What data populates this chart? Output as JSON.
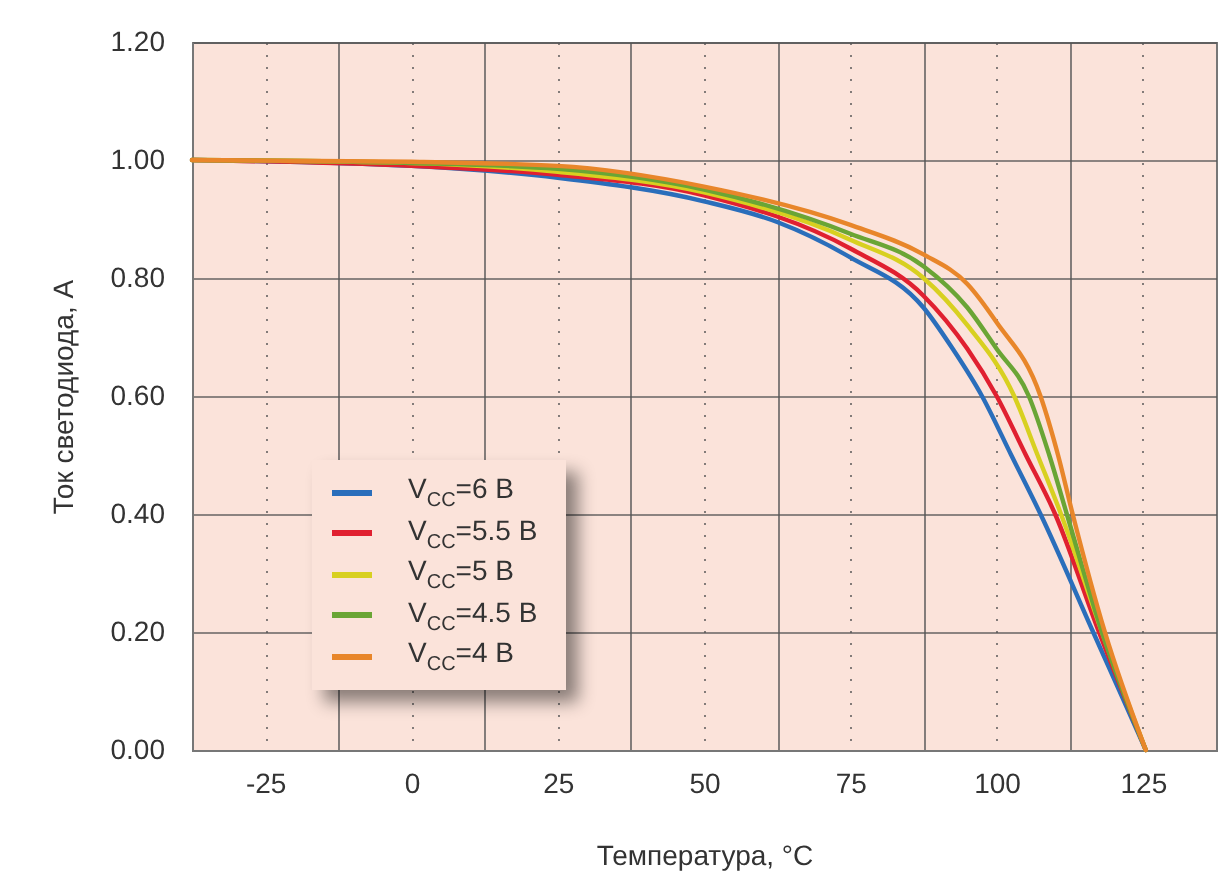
{
  "chart_data": {
    "type": "line",
    "xlabel": "Температура, °C",
    "ylabel": "Ток светодиода, А",
    "xlim": [
      -37.5,
      137.5
    ],
    "xticks": [
      {
        "value": -25,
        "label": "-25"
      },
      {
        "value": 0,
        "label": "0"
      },
      {
        "value": 25,
        "label": "25"
      },
      {
        "value": 50,
        "label": "50"
      },
      {
        "value": 75,
        "label": "75"
      },
      {
        "value": 100,
        "label": "100"
      },
      {
        "value": 125,
        "label": "125"
      },
      {
        "value": -12.5,
        "label": null
      },
      {
        "value": 12.5,
        "label": null
      },
      {
        "value": 37.5,
        "label": null
      },
      {
        "value": 62.5,
        "label": null
      },
      {
        "value": 87.5,
        "label": null
      },
      {
        "value": 112.5,
        "label": null
      }
    ],
    "ylim": [
      0,
      1.2
    ],
    "yticks": [
      {
        "value": 0,
        "label": "0.00"
      },
      {
        "value": 0.2,
        "label": "0.20"
      },
      {
        "value": 0.4,
        "label": "0.40"
      },
      {
        "value": 0.6,
        "label": "0.60"
      },
      {
        "value": 0.8,
        "label": "0.80"
      },
      {
        "value": 1.0,
        "label": "1.00"
      },
      {
        "value": 1.2,
        "label": "1.20"
      }
    ],
    "grid": true,
    "legend": "bottom left",
    "marker": "none",
    "line_style": "solid",
    "series": [
      {
        "name": "V$_{CC}$=6 В",
        "color": "#2a6ebb",
        "x": [
          -37.5,
          0,
          25,
          50,
          62.5,
          75,
          87.5,
          92.5,
          97.5,
          102.5,
          107.5,
          116.5,
          125.5
        ],
        "values": [
          1.0,
          0.99,
          0.97,
          0.93,
          0.895,
          0.835,
          0.75,
          0.68,
          0.6,
          0.5,
          0.4,
          0.2,
          0
        ]
      },
      {
        "name": "V$_{CC}$=5.5 В",
        "color": "#e02030",
        "x": [
          -37.5,
          0,
          25,
          50,
          75,
          87.5,
          95,
          100,
          105,
          110,
          117.5,
          125.5
        ],
        "values": [
          1.0,
          0.99,
          0.975,
          0.94,
          0.85,
          0.77,
          0.68,
          0.6,
          0.5,
          0.4,
          0.2,
          0
        ]
      },
      {
        "name": "V$_{CC}$=5 В",
        "color": "#d8d020",
        "x": [
          -37.5,
          0,
          25,
          50,
          75,
          87.5,
          95,
          103,
          107,
          111,
          118,
          125.5
        ],
        "values": [
          1.0,
          0.995,
          0.98,
          0.945,
          0.865,
          0.8,
          0.72,
          0.6,
          0.5,
          0.4,
          0.2,
          0
        ]
      },
      {
        "name": "V$_{CC}$=4.5 В",
        "color": "#6aa535",
        "x": [
          -37.5,
          0,
          25,
          50,
          75,
          87.5,
          95,
          100,
          105.5,
          109,
          112,
          118,
          125.5
        ],
        "values": [
          1.0,
          0.995,
          0.985,
          0.95,
          0.875,
          0.82,
          0.75,
          0.68,
          0.6,
          0.5,
          0.4,
          0.2,
          0
        ]
      },
      {
        "name": "V$_{CC}$=4 В",
        "color": "#e8862a",
        "x": [
          -37.5,
          0,
          25,
          50,
          75,
          87.5,
          95,
          100,
          107.5,
          110.5,
          113,
          118.5,
          125.5
        ],
        "values": [
          1.0,
          0.997,
          0.99,
          0.955,
          0.89,
          0.84,
          0.79,
          0.725,
          0.6,
          0.5,
          0.4,
          0.2,
          0
        ]
      }
    ]
  }
}
